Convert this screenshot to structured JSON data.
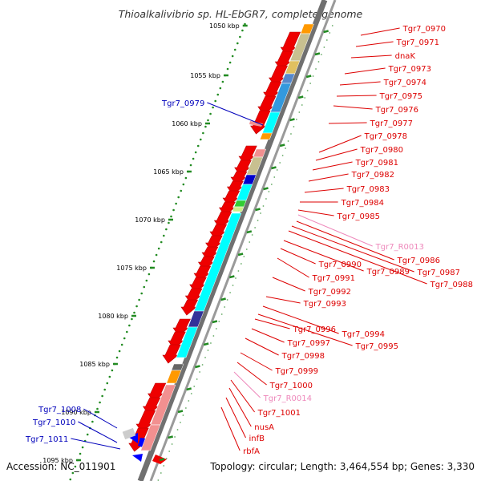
{
  "title": "Thioalkalivibrio sp. HL-EbGR7, complete genome",
  "accession": "Accession: NC_011901",
  "topology": "Topology: circular; Length: 3,464,554 bp; Genes: 3,330",
  "colors": {
    "red_label": "#dd0000",
    "blue_label": "#0000bb",
    "pink_label": "#ee88bb",
    "cds_red": "#ee0000",
    "rna_blue": "#0000ff",
    "tick_green": "#228b22",
    "cog_olive": "#c8c090",
    "cog_cyan": "#00ffff",
    "cog_orange": "#ff9900",
    "cog_pink": "#f29090",
    "cog_navy": "#333399",
    "cog_steel": "#5588cc"
  },
  "kbp_ticks": [
    {
      "kbp": 1050,
      "label": "1050 kbp"
    },
    {
      "kbp": 1055,
      "label": "1055 kbp"
    },
    {
      "kbp": 1060,
      "label": "1060 kbp"
    },
    {
      "kbp": 1065,
      "label": "1065 kbp"
    },
    {
      "kbp": 1070,
      "label": "1070 kbp"
    },
    {
      "kbp": 1075,
      "label": "1075 kbp"
    },
    {
      "kbp": 1080,
      "label": "1080 kbp"
    },
    {
      "kbp": 1085,
      "label": "1085 kbp"
    },
    {
      "kbp": 1090,
      "label": "1090 kbp"
    },
    {
      "kbp": 1095,
      "label": "1095 kbp"
    }
  ],
  "right_labels": [
    {
      "text": "Tgr7_0970",
      "type": "cds"
    },
    {
      "text": "Tgr7_0971",
      "type": "cds"
    },
    {
      "text": "dnaK",
      "type": "cds"
    },
    {
      "text": "Tgr7_0973",
      "type": "cds"
    },
    {
      "text": "Tgr7_0974",
      "type": "cds"
    },
    {
      "text": "Tgr7_0975",
      "type": "cds"
    },
    {
      "text": "Tgr7_0976",
      "type": "cds"
    },
    {
      "text": "Tgr7_0977",
      "type": "cds"
    },
    {
      "text": "Tgr7_0978",
      "type": "cds"
    },
    {
      "text": "Tgr7_0980",
      "type": "cds"
    },
    {
      "text": "Tgr7_0981",
      "type": "cds"
    },
    {
      "text": "Tgr7_0982",
      "type": "cds"
    },
    {
      "text": "Tgr7_0983",
      "type": "cds"
    },
    {
      "text": "Tgr7_0984",
      "type": "cds"
    },
    {
      "text": "Tgr7_0985",
      "type": "cds"
    },
    {
      "text": "Tgr7_R0013",
      "type": "rna"
    },
    {
      "text": "Tgr7_0986",
      "type": "cds"
    },
    {
      "text": "Tgr7_0987",
      "type": "cds"
    },
    {
      "text": "Tgr7_0988",
      "type": "cds"
    },
    {
      "text": "Tgr7_0989",
      "type": "cds"
    },
    {
      "text": "Tgr7_0990",
      "type": "cds"
    },
    {
      "text": "Tgr7_0991",
      "type": "cds"
    },
    {
      "text": "Tgr7_0992",
      "type": "cds"
    },
    {
      "text": "Tgr7_0993",
      "type": "cds"
    },
    {
      "text": "Tgr7_0994",
      "type": "cds"
    },
    {
      "text": "Tgr7_0995",
      "type": "cds"
    },
    {
      "text": "Tgr7_0996",
      "type": "cds"
    },
    {
      "text": "Tgr7_0997",
      "type": "cds"
    },
    {
      "text": "Tgr7_0998",
      "type": "cds"
    },
    {
      "text": "Tgr7_0999",
      "type": "cds"
    },
    {
      "text": "Tgr7_1000",
      "type": "cds"
    },
    {
      "text": "Tgr7_R0014",
      "type": "rna"
    },
    {
      "text": "Tgr7_1001",
      "type": "cds"
    },
    {
      "text": "nusA",
      "type": "cds"
    },
    {
      "text": "infB",
      "type": "cds"
    },
    {
      "text": "rbfA",
      "type": "cds"
    }
  ],
  "left_labels": [
    {
      "text": "Tgr7_0979"
    },
    {
      "text": "Tgr7_1008"
    },
    {
      "text": "Tgr7_1010"
    },
    {
      "text": "Tgr7_1011"
    }
  ]
}
